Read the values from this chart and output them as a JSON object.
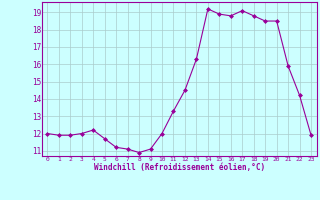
{
  "x": [
    0,
    1,
    2,
    3,
    4,
    5,
    6,
    7,
    8,
    9,
    10,
    11,
    12,
    13,
    14,
    15,
    16,
    17,
    18,
    19,
    20,
    21,
    22,
    23
  ],
  "y": [
    12.0,
    11.9,
    11.9,
    12.0,
    12.2,
    11.7,
    11.2,
    11.1,
    10.9,
    11.1,
    12.0,
    13.3,
    14.5,
    16.3,
    19.2,
    18.9,
    18.8,
    19.1,
    18.8,
    18.5,
    18.5,
    15.9,
    14.2,
    11.9
  ],
  "line_color": "#990099",
  "marker": "D",
  "marker_size": 2.0,
  "bg_color": "#ccffff",
  "grid_color": "#aacccc",
  "xlabel": "Windchill (Refroidissement éolien,°C)",
  "xlabel_color": "#990099",
  "tick_color": "#990099",
  "ylim": [
    10.7,
    19.6
  ],
  "xlim": [
    -0.5,
    23.5
  ],
  "yticks": [
    11,
    12,
    13,
    14,
    15,
    16,
    17,
    18,
    19
  ],
  "xticks": [
    0,
    1,
    2,
    3,
    4,
    5,
    6,
    7,
    8,
    9,
    10,
    11,
    12,
    13,
    14,
    15,
    16,
    17,
    18,
    19,
    20,
    21,
    22,
    23
  ],
  "figsize": [
    3.2,
    2.0
  ],
  "dpi": 100
}
